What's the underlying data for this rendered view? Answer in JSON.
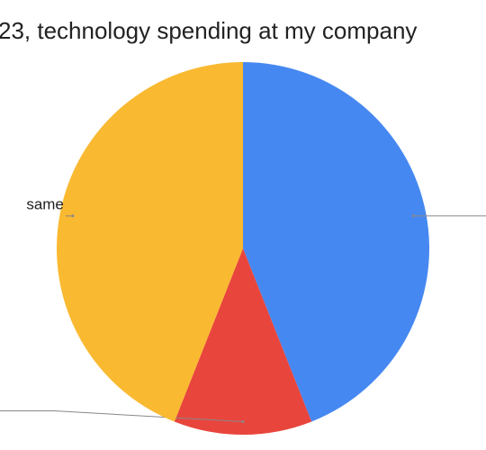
{
  "chart_data": {
    "type": "pie",
    "title": "23, technology spending at my company",
    "categories": [
      null,
      null,
      "same"
    ],
    "values": [
      44,
      12,
      44
    ],
    "colors": [
      "#4688f1",
      "#e8453c",
      "#f9b931"
    ]
  }
}
